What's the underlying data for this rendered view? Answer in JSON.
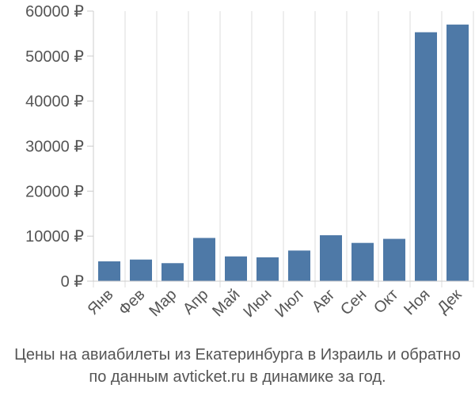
{
  "chart_data": {
    "type": "bar",
    "categories": [
      "Янв",
      "Фев",
      "Мар",
      "Апр",
      "Май",
      "Июн",
      "Июл",
      "Авг",
      "Сен",
      "Окт",
      "Ноя",
      "Дек"
    ],
    "values": [
      4400,
      4800,
      4000,
      9600,
      5500,
      5300,
      6800,
      10200,
      8500,
      9400,
      55300,
      57000
    ],
    "ylim": [
      0,
      60000
    ],
    "yticks": [
      0,
      10000,
      20000,
      30000,
      40000,
      50000,
      60000
    ],
    "ytick_labels": [
      "0 ₽",
      "10000 ₽",
      "20000 ₽",
      "30000 ₽",
      "40000 ₽",
      "50000 ₽",
      "60000 ₽"
    ],
    "grid": "vertical",
    "bar_color": "#4e79a7",
    "title": "",
    "xlabel": "",
    "ylabel": ""
  },
  "caption": {
    "line1": "Цены на авиабилеты из Екатеринбурга в Израиль и обратно",
    "line2": "по данным avticket.ru в динамике за год."
  }
}
